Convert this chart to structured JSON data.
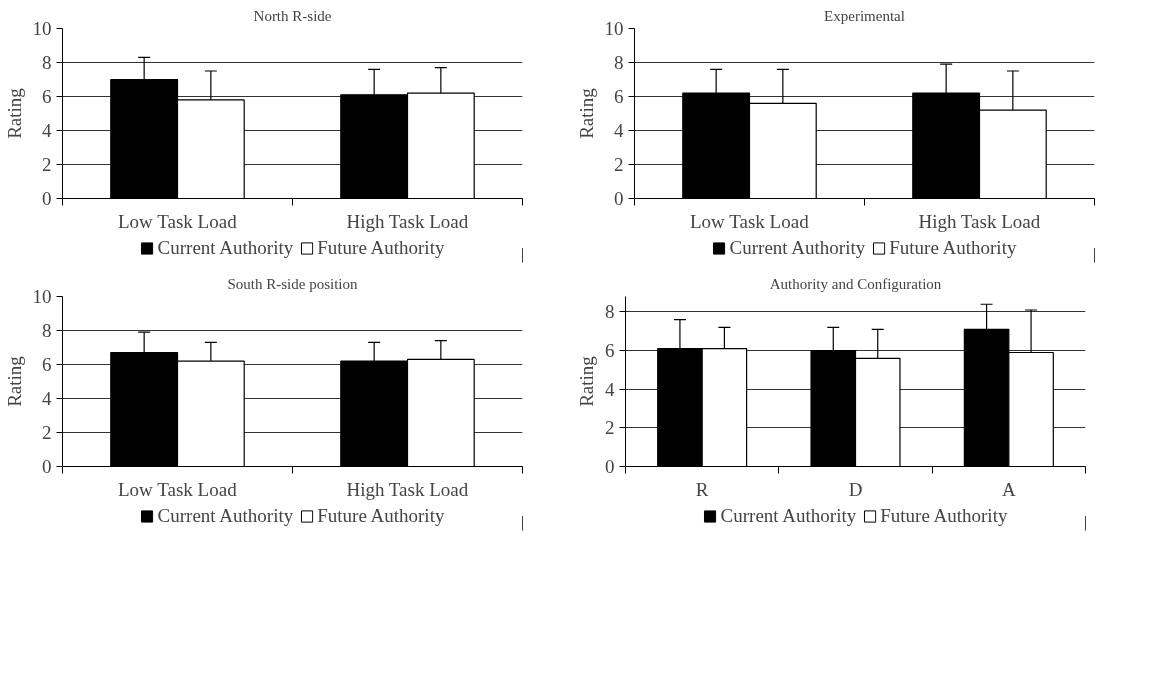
{
  "chart_data": [
    {
      "type": "bar",
      "title": "North R-side",
      "ylabel": "Rating",
      "categories": [
        "Low Task Load",
        "High Task Load"
      ],
      "ylim": [
        0,
        10
      ],
      "yticks": [
        0,
        2,
        4,
        6,
        8,
        10
      ],
      "grid": "y",
      "legend": "bottom",
      "series": [
        {
          "name": "Current Authority",
          "color": "#000000",
          "values": [
            7.0,
            6.1
          ],
          "errors": [
            [
              7.0,
              8.3
            ],
            [
              6.1,
              7.6
            ]
          ]
        },
        {
          "name": "Future Authority",
          "color": "#ffffff",
          "values": [
            5.8,
            6.2
          ],
          "errors": [
            [
              5.8,
              7.5
            ],
            [
              6.2,
              7.7
            ]
          ]
        }
      ]
    },
    {
      "type": "bar",
      "title": "Experimental",
      "ylabel": "Rating",
      "categories": [
        "Low Task Load",
        "High Task Load"
      ],
      "ylim": [
        0,
        10
      ],
      "yticks": [
        0,
        2,
        4,
        6,
        8,
        10
      ],
      "grid": "y",
      "legend": "bottom",
      "series": [
        {
          "name": "Current Authority",
          "color": "#000000",
          "values": [
            6.2,
            6.2
          ],
          "errors": [
            [
              6.2,
              7.6
            ],
            [
              6.2,
              7.9
            ]
          ]
        },
        {
          "name": "Future Authority",
          "color": "#ffffff",
          "values": [
            5.6,
            5.2
          ],
          "errors": [
            [
              5.6,
              7.6
            ],
            [
              5.2,
              7.5
            ]
          ]
        }
      ]
    },
    {
      "type": "bar",
      "title": "South R-side position",
      "ylabel": "Rating",
      "categories": [
        "Low Task Load",
        "High Task Load"
      ],
      "ylim": [
        0,
        10
      ],
      "yticks": [
        0,
        2,
        4,
        6,
        8,
        10
      ],
      "grid": "y",
      "legend": "bottom",
      "series": [
        {
          "name": "Current Authority",
          "color": "#000000",
          "values": [
            6.7,
            6.2
          ],
          "errors": [
            [
              6.7,
              7.9
            ],
            [
              6.2,
              7.3
            ]
          ]
        },
        {
          "name": "Future Authority",
          "color": "#ffffff",
          "values": [
            6.2,
            6.3
          ],
          "errors": [
            [
              6.2,
              7.3
            ],
            [
              6.3,
              7.4
            ]
          ]
        }
      ]
    },
    {
      "type": "bar",
      "title": "Authority and Configuration",
      "ylabel": "Rating",
      "categories": [
        "R",
        "D",
        "A"
      ],
      "ylim": [
        0,
        8.8
      ],
      "yticks": [
        0,
        2,
        4,
        6,
        8
      ],
      "grid": "y",
      "legend": "bottom",
      "series": [
        {
          "name": "Current Authority",
          "color": "#000000",
          "values": [
            6.1,
            6.0,
            7.1
          ],
          "errors": [
            [
              6.1,
              7.6
            ],
            [
              6.0,
              7.2
            ],
            [
              7.1,
              8.4
            ]
          ]
        },
        {
          "name": "Future Authority",
          "color": "#ffffff",
          "values": [
            6.1,
            5.6,
            5.9
          ],
          "errors": [
            [
              6.1,
              7.2
            ],
            [
              5.6,
              7.1
            ],
            [
              5.9,
              8.1
            ]
          ]
        }
      ]
    }
  ]
}
